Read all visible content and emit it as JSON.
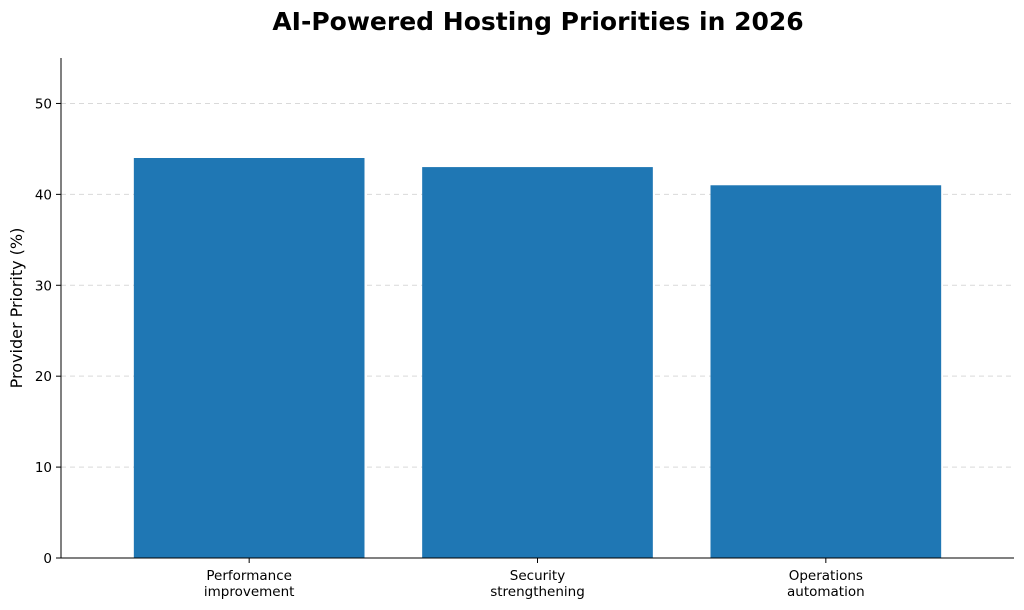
{
  "chart_data": {
    "type": "bar",
    "title": "AI-Powered Hosting Priorities in 2026",
    "xlabel": "",
    "ylabel": "Provider Priority (%)",
    "categories": [
      [
        "Performance",
        "improvement"
      ],
      [
        "Security",
        "strengthening"
      ],
      [
        "Operations",
        "automation"
      ]
    ],
    "values": [
      44,
      43,
      41
    ],
    "ylim": [
      0,
      55
    ],
    "yticks": [
      0,
      10,
      20,
      30,
      40,
      50
    ],
    "grid": "y-dashed",
    "bar_color": "#1f77b4",
    "grid_color": "#d9d9d9"
  }
}
